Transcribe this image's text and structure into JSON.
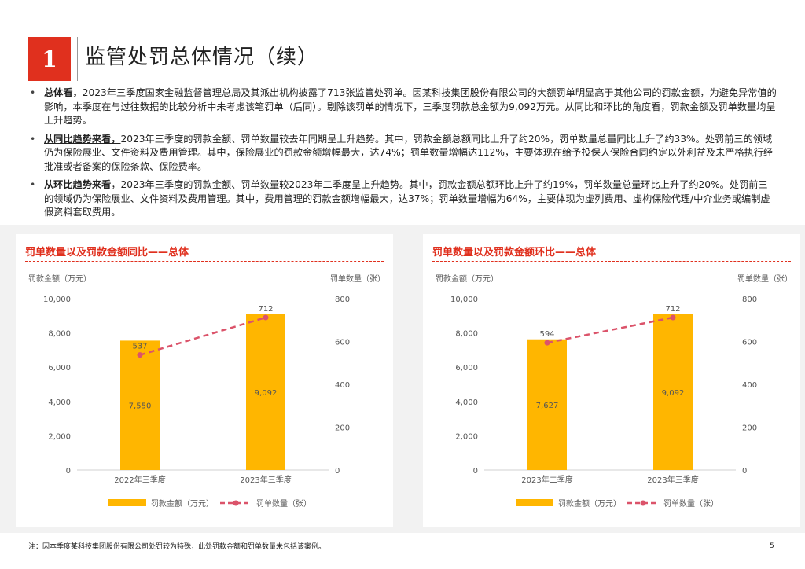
{
  "header": {
    "section_number": "1",
    "title": "监管处罚总体情况（续）"
  },
  "bullets": [
    {
      "lead": "总体看，",
      "text": "2023年三季度国家金融监督管理总局及其派出机构披露了713张监管处罚单。因某科技集团股份有限公司的大额罚单明显高于其他公司的罚款金额，为避免异常值的影响，本季度在与过往数据的比较分析中未考虑该笔罚单（后同）。剔除该罚单的情况下，三季度罚款总金额为9,092万元。从同比和环比的角度看，罚款金额及罚单数量均呈上升趋势。"
    },
    {
      "lead": "从同比趋势来看，",
      "text": "2023年三季度的罚款金额、罚单数量较去年同期呈上升趋势。其中，罚款金额总额同比上升了约20%，罚单数量总量同比上升了约33%。处罚前三的领域仍为保险展业、文件资料及费用管理。其中，保险展业的罚款金额增幅最大，达74%；罚单数量增幅达112%，主要体现在给予投保人保险合同约定以外利益及未严格执行经批准或者备案的保险条款、保险费率。"
    },
    {
      "lead": "从环比趋势来看",
      "text": "，2023年三季度的罚款金额、罚单数量较2023年二季度呈上升趋势。其中，罚款金额总额环比上升了约19%，罚单数量总量环比上升了约20%。处罚前三的领域仍为保险展业、文件资料及费用管理。其中，费用管理的罚款金额增幅最大，达37%；罚单数量增幅为64%，主要体现为虚列费用、虚构保险代理/中介业务或编制虚假资料套取费用。"
    }
  ],
  "chart_data": [
    {
      "type": "bar",
      "title": "罚单数量以及罚款金额同比——总体",
      "categories": [
        "2022年三季度",
        "2023年三季度"
      ],
      "series": [
        {
          "name": "罚款金额（万元）",
          "type": "bar",
          "axis": "left",
          "values": [
            7550,
            9092
          ],
          "labels": [
            "7,550",
            "9,092"
          ]
        },
        {
          "name": "罚单数量（张）",
          "type": "line",
          "axis": "right",
          "values": [
            537,
            712
          ],
          "labels": [
            "537",
            "712"
          ]
        }
      ],
      "ylabel_left": "罚款金额（万元）",
      "ylabel_right": "罚单数量（张）",
      "ylim_left": [
        0,
        10000
      ],
      "ylim_right": [
        0,
        800
      ],
      "yticks_left": [
        "0",
        "2,000",
        "4,000",
        "6,000",
        "8,000",
        "10,000"
      ],
      "yticks_right": [
        "0",
        "200",
        "400",
        "600",
        "800"
      ],
      "legend": [
        "罚款金额（万元）",
        "罚单数量（张）"
      ],
      "colors": {
        "bar": "#ffb600",
        "line": "#db536a"
      }
    },
    {
      "type": "bar",
      "title": "罚单数量以及罚款金额环比——总体",
      "categories": [
        "2023年二季度",
        "2023年三季度"
      ],
      "series": [
        {
          "name": "罚款金额（万元）",
          "type": "bar",
          "axis": "left",
          "values": [
            7627,
            9092
          ],
          "labels": [
            "7,627",
            "9,092"
          ]
        },
        {
          "name": "罚单数量（张）",
          "type": "line",
          "axis": "right",
          "values": [
            594,
            712
          ],
          "labels": [
            "594",
            "712"
          ]
        }
      ],
      "ylabel_left": "罚款金额（万元）",
      "ylabel_right": "罚单数量（张）",
      "ylim_left": [
        0,
        10000
      ],
      "ylim_right": [
        0,
        800
      ],
      "yticks_left": [
        "0",
        "2,000",
        "4,000",
        "6,000",
        "8,000",
        "10,000"
      ],
      "yticks_right": [
        "0",
        "200",
        "400",
        "600",
        "800"
      ],
      "legend": [
        "罚款金额（万元）",
        "罚单数量（张）"
      ],
      "colors": {
        "bar": "#ffb600",
        "line": "#db536a"
      }
    }
  ],
  "footnote": "注：因本季度某科技集团股份有限公司处罚较为特殊，此处罚款金额和罚单数量未包括该案例。",
  "page_number": "5"
}
